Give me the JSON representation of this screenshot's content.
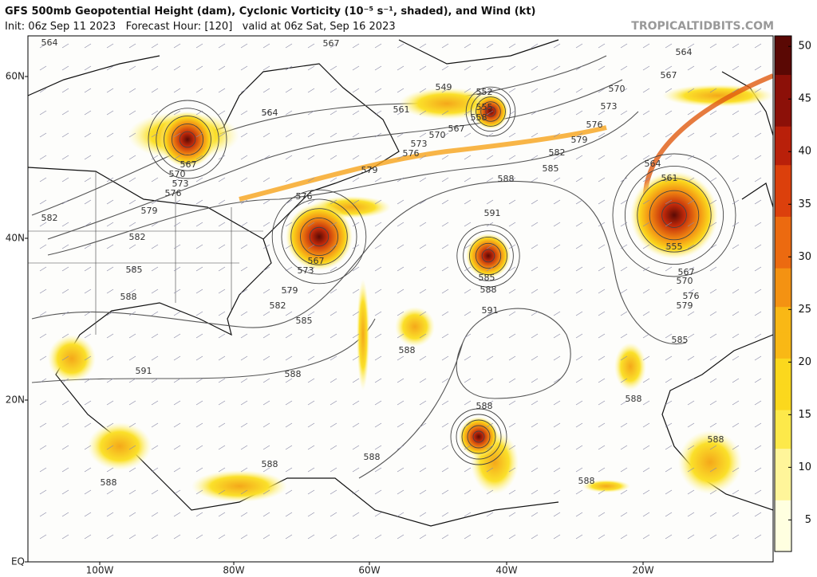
{
  "header": {
    "title": "GFS 500mb Geopotential Height (dam), Cyclonic Vorticity (10⁻⁵ s⁻¹, shaded), and Wind (kt)",
    "subtitle": "Init: 06z Sep 11 2023   Forecast Hour: [120]   valid at 06z Sat, Sep 16 2023",
    "watermark": "TROPICALTIDBITS.COM"
  },
  "map": {
    "lat_labels": [
      "60N",
      "40N",
      "20N",
      "EQ"
    ],
    "lon_labels": [
      "100W",
      "80W",
      "60W",
      "40W",
      "20W"
    ],
    "contour_labels": [
      "564",
      "567",
      "564",
      "567",
      "549",
      "552",
      "561",
      "570",
      "573",
      "555",
      "558",
      "564",
      "567",
      "576",
      "570",
      "573",
      "579",
      "576",
      "582",
      "567",
      "570",
      "573",
      "576",
      "579",
      "585",
      "564",
      "561",
      "588",
      "576",
      "591",
      "579",
      "582",
      "582",
      "555",
      "567",
      "573",
      "585",
      "567",
      "570",
      "585",
      "588",
      "576",
      "579",
      "588",
      "579",
      "582",
      "591",
      "585",
      "585",
      "588",
      "591",
      "588",
      "588",
      "588",
      "588",
      "588",
      "588",
      "588",
      "588"
    ]
  },
  "colorbar": {
    "lim": [
      2,
      51
    ],
    "ticks": [
      5,
      10,
      15,
      20,
      25,
      30,
      35,
      40,
      45,
      50
    ]
  }
}
